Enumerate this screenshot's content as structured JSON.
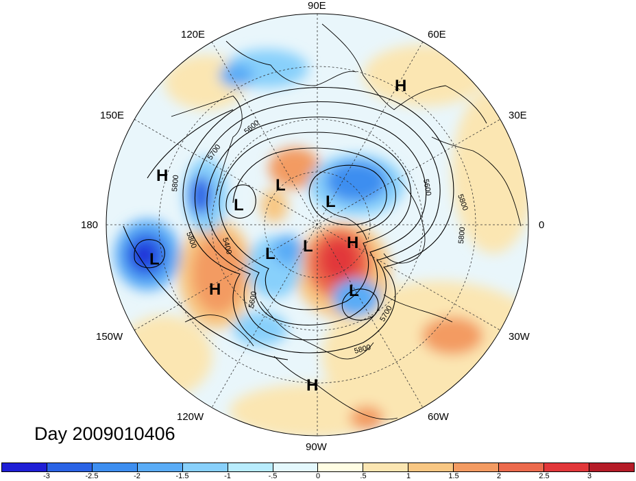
{
  "title": "Day 2009010406",
  "map": {
    "projection": "north polar stereographic",
    "longitude_labels": [
      {
        "id": "90E",
        "text": "90E"
      },
      {
        "id": "60E",
        "text": "60E"
      },
      {
        "id": "30E",
        "text": "30E"
      },
      {
        "id": "0",
        "text": "0"
      },
      {
        "id": "30W",
        "text": "30W"
      },
      {
        "id": "60W",
        "text": "60W"
      },
      {
        "id": "90W",
        "text": "90W"
      },
      {
        "id": "120W",
        "text": "120W"
      },
      {
        "id": "150W",
        "text": "150W"
      },
      {
        "id": "180",
        "text": "180"
      },
      {
        "id": "150E",
        "text": "150E"
      },
      {
        "id": "120E",
        "text": "120E"
      }
    ],
    "pressure_centers": [
      {
        "label": "H",
        "where": "over eastern Siberia / Central Asia"
      },
      {
        "label": "H",
        "where": "western Pacific"
      },
      {
        "label": "L",
        "where": "Sea of Okhotsk"
      },
      {
        "label": "L",
        "where": "East Siberian Sea"
      },
      {
        "label": "L",
        "where": "northern Scandinavia"
      },
      {
        "label": "L",
        "where": "central North Pacific"
      },
      {
        "label": "H",
        "where": "Gulf of Alaska"
      },
      {
        "label": "L",
        "where": "northern Canada"
      },
      {
        "label": "L",
        "where": "Canadian Archipelago"
      },
      {
        "label": "H",
        "where": "Greenland"
      },
      {
        "label": "L",
        "where": "Labrador Sea"
      },
      {
        "label": "H",
        "where": "Gulf of Mexico"
      }
    ],
    "contour_labels": [
      "5800",
      "5700",
      "5600",
      "5400",
      "5800",
      "5600",
      "5700",
      "5800",
      "5600",
      "5800",
      "5800"
    ]
  },
  "colorbar": {
    "colors": [
      "#1f1fd6",
      "#2a63e5",
      "#3d8ef0",
      "#5aacf6",
      "#88d0fb",
      "#b8ecfd",
      "#e4f8fd",
      "#fffde3",
      "#fbe6b2",
      "#f8c783",
      "#f39b62",
      "#ec6a4d",
      "#e2373a",
      "#b51b27"
    ],
    "tick_labels": [
      "-3",
      "-2.5",
      "-2",
      "-1.5",
      "-1",
      "-.5",
      "0",
      ".5",
      "1",
      "1.5",
      "2",
      "2.5",
      "3"
    ]
  }
}
